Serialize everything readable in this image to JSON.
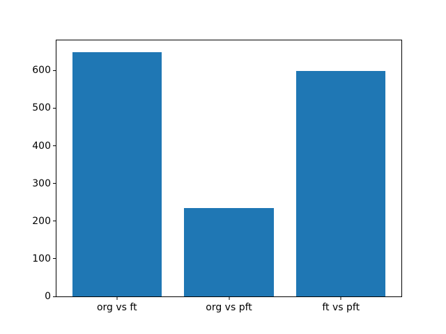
{
  "chart_data": {
    "type": "bar",
    "categories": [
      "org vs ft",
      "org vs pft",
      "ft vs pft"
    ],
    "values": [
      648,
      234,
      599
    ],
    "title": "",
    "xlabel": "",
    "ylabel": "",
    "yticks": [
      0,
      100,
      200,
      300,
      400,
      500,
      600
    ],
    "ylim": [
      0,
      680
    ],
    "xlim": [
      -0.54,
      2.54
    ],
    "bar_unit_width": 0.8,
    "bar_color": "#1f77b4",
    "spine_color": "#000000",
    "text_color": "#000000",
    "background_color": "#ffffff",
    "grid": false,
    "legend": "none"
  }
}
